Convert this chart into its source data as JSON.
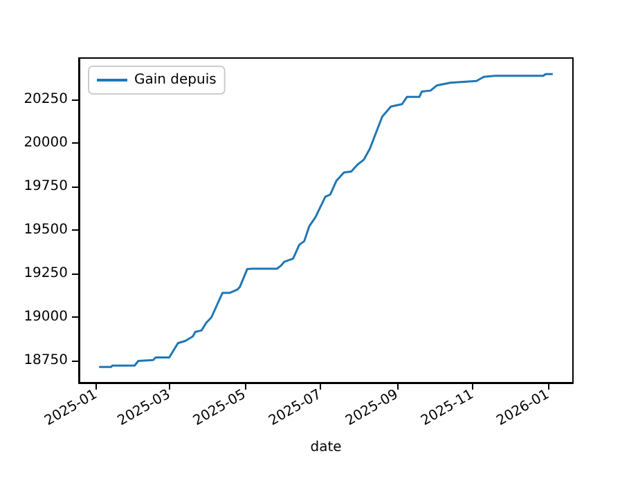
{
  "chart_data": {
    "type": "line",
    "xlabel": "date",
    "x": [
      "2025-01-04",
      "2025-01-13",
      "2025-01-14",
      "2025-02-01",
      "2025-02-04",
      "2025-02-16",
      "2025-02-18",
      "2025-03-01",
      "2025-03-08",
      "2025-03-14",
      "2025-03-20",
      "2025-03-22",
      "2025-03-27",
      "2025-03-31",
      "2025-04-04",
      "2025-04-13",
      "2025-04-19",
      "2025-04-25",
      "2025-04-27",
      "2025-05-03",
      "2025-05-07",
      "2025-05-27",
      "2025-05-30",
      "2025-06-02",
      "2025-06-09",
      "2025-06-14",
      "2025-06-18",
      "2025-06-22",
      "2025-06-27",
      "2025-07-05",
      "2025-07-09",
      "2025-07-14",
      "2025-07-20",
      "2025-07-26",
      "2025-07-31",
      "2025-08-05",
      "2025-08-10",
      "2025-08-20",
      "2025-08-27",
      "2025-09-05",
      "2025-09-09",
      "2025-09-19",
      "2025-09-21",
      "2025-09-28",
      "2025-10-03",
      "2025-10-14",
      "2025-11-04",
      "2025-11-10",
      "2025-11-19",
      "2025-12-28",
      "2025-12-30",
      "2026-01-04"
    ],
    "series": [
      {
        "name": "Gain depuis",
        "color": "#1f77b4",
        "values": [
          18715,
          18715,
          18723,
          18723,
          18750,
          18755,
          18770,
          18770,
          18852,
          18865,
          18891,
          18917,
          18925,
          18970,
          19000,
          19141,
          19141,
          19160,
          19175,
          19278,
          19280,
          19280,
          19296,
          19320,
          19338,
          19417,
          19438,
          19523,
          19575,
          19693,
          19706,
          19785,
          19832,
          19838,
          19878,
          19905,
          19969,
          20154,
          20211,
          20225,
          20267,
          20267,
          20298,
          20303,
          20332,
          20348,
          20358,
          20382,
          20388,
          20388,
          20398,
          20398
        ]
      }
    ],
    "xlim": [
      "2024-12-18",
      "2026-01-21"
    ],
    "xticks": [
      "2025-01",
      "2025-03",
      "2025-05",
      "2025-07",
      "2025-09",
      "2025-11",
      "2026-01"
    ],
    "ylim": [
      18625,
      20490
    ],
    "yticks": [
      18750,
      19000,
      19250,
      19500,
      19750,
      20000,
      20250
    ],
    "legend": "top left",
    "grid": false,
    "marker": "none",
    "line_style": "solid"
  }
}
